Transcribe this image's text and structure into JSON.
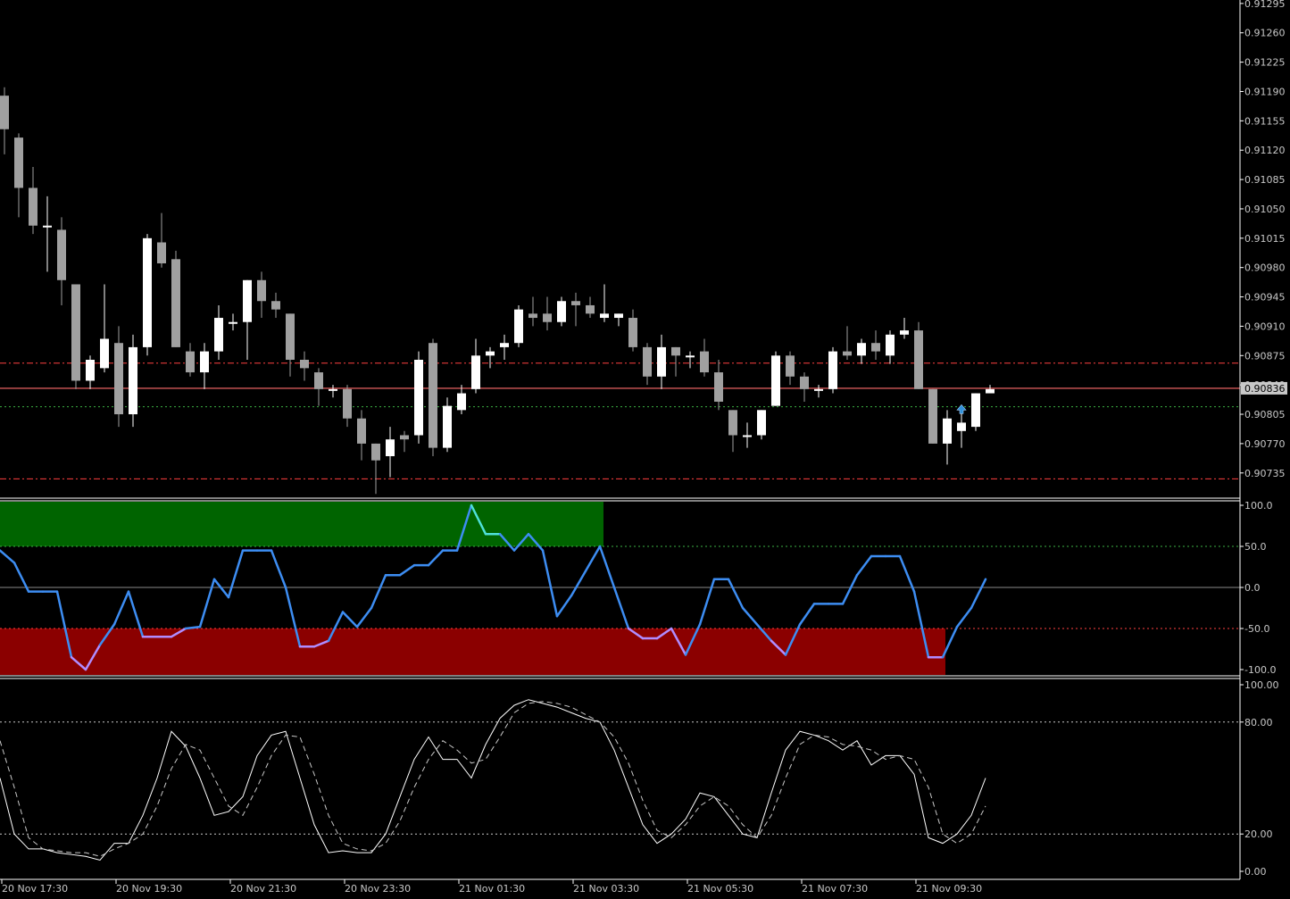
{
  "chart_data": [
    {
      "type": "candlestick",
      "price_axis_ticks": [
        "0.91295",
        "0.91260",
        "0.91225",
        "0.91190",
        "0.91155",
        "0.91120",
        "0.91085",
        "0.91050",
        "0.91015",
        "0.90980",
        "0.90945",
        "0.90910",
        "0.90875",
        "0.90840",
        "0.90805",
        "0.90770",
        "0.90735"
      ],
      "ylim": [
        0.907,
        0.91295
      ],
      "current_price": 0.90836,
      "current_price_label": "0.90836",
      "current_price_color": "#ff6b6b",
      "levels": [
        {
          "price": 0.90866,
          "style": "dashdot",
          "color": "#ff4040"
        },
        {
          "price": 0.90814,
          "style": "dotted",
          "color": "#3cb043"
        },
        {
          "price": 0.90728,
          "style": "dashdot",
          "color": "#ff4040"
        }
      ],
      "bull_color": "#ffffff",
      "bear_color": "#a0a0a0",
      "candles": [
        {
          "o": 0.91185,
          "h": 0.91195,
          "l": 0.91115,
          "c": 0.91145
        },
        {
          "o": 0.91135,
          "h": 0.9114,
          "l": 0.9104,
          "c": 0.91075
        },
        {
          "o": 0.91075,
          "h": 0.911,
          "l": 0.9102,
          "c": 0.9103
        },
        {
          "o": 0.9103,
          "h": 0.91065,
          "l": 0.90975,
          "c": 0.9103
        },
        {
          "o": 0.91025,
          "h": 0.9104,
          "l": 0.90935,
          "c": 0.90965
        },
        {
          "o": 0.9096,
          "h": 0.9096,
          "l": 0.90835,
          "c": 0.90845
        },
        {
          "o": 0.90845,
          "h": 0.90875,
          "l": 0.90835,
          "c": 0.9087
        },
        {
          "o": 0.9086,
          "h": 0.9096,
          "l": 0.90855,
          "c": 0.90895
        },
        {
          "o": 0.9089,
          "h": 0.9091,
          "l": 0.9079,
          "c": 0.90805
        },
        {
          "o": 0.90805,
          "h": 0.909,
          "l": 0.9079,
          "c": 0.90885
        },
        {
          "o": 0.90885,
          "h": 0.9102,
          "l": 0.90875,
          "c": 0.91015
        },
        {
          "o": 0.9101,
          "h": 0.91045,
          "l": 0.9098,
          "c": 0.90985
        },
        {
          "o": 0.9099,
          "h": 0.91,
          "l": 0.90885,
          "c": 0.90885
        },
        {
          "o": 0.9088,
          "h": 0.9089,
          "l": 0.9085,
          "c": 0.90855
        },
        {
          "o": 0.90855,
          "h": 0.9089,
          "l": 0.90835,
          "c": 0.9088
        },
        {
          "o": 0.9088,
          "h": 0.90935,
          "l": 0.9087,
          "c": 0.9092
        },
        {
          "o": 0.90915,
          "h": 0.90925,
          "l": 0.90905,
          "c": 0.90915
        },
        {
          "o": 0.90915,
          "h": 0.90965,
          "l": 0.9087,
          "c": 0.90965
        },
        {
          "o": 0.90965,
          "h": 0.90975,
          "l": 0.9092,
          "c": 0.9094
        },
        {
          "o": 0.9094,
          "h": 0.9095,
          "l": 0.9092,
          "c": 0.9093
        },
        {
          "o": 0.90925,
          "h": 0.90925,
          "l": 0.9085,
          "c": 0.9087
        },
        {
          "o": 0.9087,
          "h": 0.9088,
          "l": 0.90845,
          "c": 0.9086
        },
        {
          "o": 0.90855,
          "h": 0.9086,
          "l": 0.90815,
          "c": 0.90835
        },
        {
          "o": 0.90835,
          "h": 0.9084,
          "l": 0.90825,
          "c": 0.90835
        },
        {
          "o": 0.90835,
          "h": 0.9084,
          "l": 0.9079,
          "c": 0.908
        },
        {
          "o": 0.908,
          "h": 0.9081,
          "l": 0.9075,
          "c": 0.9077
        },
        {
          "o": 0.9077,
          "h": 0.9077,
          "l": 0.9071,
          "c": 0.9075
        },
        {
          "o": 0.90755,
          "h": 0.9079,
          "l": 0.9073,
          "c": 0.90775
        },
        {
          "o": 0.9078,
          "h": 0.90785,
          "l": 0.9076,
          "c": 0.90775
        },
        {
          "o": 0.9078,
          "h": 0.9088,
          "l": 0.9077,
          "c": 0.9087
        },
        {
          "o": 0.9089,
          "h": 0.90895,
          "l": 0.90755,
          "c": 0.90765
        },
        {
          "o": 0.90765,
          "h": 0.90825,
          "l": 0.9076,
          "c": 0.90815
        },
        {
          "o": 0.9081,
          "h": 0.9084,
          "l": 0.90805,
          "c": 0.9083
        },
        {
          "o": 0.90835,
          "h": 0.90895,
          "l": 0.9083,
          "c": 0.90875
        },
        {
          "o": 0.90875,
          "h": 0.90885,
          "l": 0.9086,
          "c": 0.9088
        },
        {
          "o": 0.90885,
          "h": 0.909,
          "l": 0.9087,
          "c": 0.9089
        },
        {
          "o": 0.9089,
          "h": 0.90935,
          "l": 0.90885,
          "c": 0.9093
        },
        {
          "o": 0.90925,
          "h": 0.90945,
          "l": 0.9091,
          "c": 0.9092
        },
        {
          "o": 0.90925,
          "h": 0.90945,
          "l": 0.90905,
          "c": 0.90915
        },
        {
          "o": 0.90915,
          "h": 0.90945,
          "l": 0.9091,
          "c": 0.9094
        },
        {
          "o": 0.9094,
          "h": 0.9095,
          "l": 0.9091,
          "c": 0.90935
        },
        {
          "o": 0.90935,
          "h": 0.90945,
          "l": 0.9092,
          "c": 0.90925
        },
        {
          "o": 0.9092,
          "h": 0.9096,
          "l": 0.90915,
          "c": 0.90925
        },
        {
          "o": 0.9092,
          "h": 0.90925,
          "l": 0.9091,
          "c": 0.90925
        },
        {
          "o": 0.9092,
          "h": 0.9093,
          "l": 0.9088,
          "c": 0.90885
        },
        {
          "o": 0.90885,
          "h": 0.9089,
          "l": 0.9084,
          "c": 0.9085
        },
        {
          "o": 0.9085,
          "h": 0.909,
          "l": 0.90835,
          "c": 0.90885
        },
        {
          "o": 0.90885,
          "h": 0.90885,
          "l": 0.9085,
          "c": 0.90875
        },
        {
          "o": 0.90875,
          "h": 0.9088,
          "l": 0.9086,
          "c": 0.90875
        },
        {
          "o": 0.9088,
          "h": 0.90895,
          "l": 0.9085,
          "c": 0.90855
        },
        {
          "o": 0.90855,
          "h": 0.9087,
          "l": 0.9081,
          "c": 0.9082
        },
        {
          "o": 0.9081,
          "h": 0.9081,
          "l": 0.9076,
          "c": 0.9078
        },
        {
          "o": 0.9078,
          "h": 0.90795,
          "l": 0.90765,
          "c": 0.9078
        },
        {
          "o": 0.9078,
          "h": 0.9081,
          "l": 0.90775,
          "c": 0.9081
        },
        {
          "o": 0.90815,
          "h": 0.9088,
          "l": 0.90815,
          "c": 0.90875
        },
        {
          "o": 0.90875,
          "h": 0.9088,
          "l": 0.9084,
          "c": 0.9085
        },
        {
          "o": 0.9085,
          "h": 0.90855,
          "l": 0.9082,
          "c": 0.90835
        },
        {
          "o": 0.90835,
          "h": 0.9084,
          "l": 0.90825,
          "c": 0.90835
        },
        {
          "o": 0.90835,
          "h": 0.90885,
          "l": 0.9083,
          "c": 0.9088
        },
        {
          "o": 0.9088,
          "h": 0.9091,
          "l": 0.9087,
          "c": 0.90875
        },
        {
          "o": 0.90875,
          "h": 0.90895,
          "l": 0.90865,
          "c": 0.9089
        },
        {
          "o": 0.9089,
          "h": 0.90905,
          "l": 0.9087,
          "c": 0.9088
        },
        {
          "o": 0.90875,
          "h": 0.90905,
          "l": 0.90865,
          "c": 0.909
        },
        {
          "o": 0.909,
          "h": 0.9092,
          "l": 0.90895,
          "c": 0.90905
        },
        {
          "o": 0.90905,
          "h": 0.90915,
          "l": 0.90835,
          "c": 0.90835
        },
        {
          "o": 0.90835,
          "h": 0.90835,
          "l": 0.9077,
          "c": 0.9077
        },
        {
          "o": 0.9077,
          "h": 0.9081,
          "l": 0.90745,
          "c": 0.908
        },
        {
          "o": 0.90785,
          "h": 0.90815,
          "l": 0.90765,
          "c": 0.90795
        },
        {
          "o": 0.9079,
          "h": 0.9083,
          "l": 0.90785,
          "c": 0.9083
        },
        {
          "o": 0.9083,
          "h": 0.9084,
          "l": 0.9083,
          "c": 0.90835
        }
      ],
      "marker_label": "up-arrow"
    },
    {
      "type": "line",
      "indicator": "oscillator",
      "ylim": [
        -100,
        100
      ],
      "ticks": [
        "100.0",
        "50.0",
        "0.0",
        "-50.0",
        "-100.0"
      ],
      "overbought": 50,
      "oversold": -50,
      "overbought_zone_color": "#006400",
      "oversold_zone_color": "#8b0000",
      "line_color": "#3d8df2",
      "extreme_high_color": "#4fe0d8",
      "extreme_low_color": "#b08cff",
      "values": [
        45,
        30,
        -5,
        -5,
        -5,
        -85,
        -100,
        -70,
        -45,
        -5,
        -60,
        -60,
        -60,
        -50,
        -48,
        10,
        -12,
        45,
        45,
        45,
        0,
        -72,
        -72,
        -65,
        -30,
        -48,
        -25,
        15,
        15,
        27,
        27,
        45,
        45,
        100,
        65,
        65,
        45,
        65,
        45,
        -35,
        -10,
        20,
        50,
        0,
        -50,
        -62,
        -62,
        -50,
        -82,
        -45,
        10,
        10,
        -25,
        -45,
        -65,
        -82,
        -45,
        -20,
        -20,
        -20,
        15,
        38,
        38,
        38,
        -5,
        -85,
        -85,
        -48,
        -25,
        10
      ]
    },
    {
      "type": "line",
      "indicator": "stochastic",
      "ylim": [
        0,
        100
      ],
      "ticks": [
        "100.00",
        "80.00",
        "20.00",
        "0.00"
      ],
      "levels": [
        80,
        20
      ],
      "series": [
        {
          "style": "solid",
          "color": "#ffffff",
          "values": [
            50,
            20,
            12,
            12,
            10,
            9,
            8,
            6,
            15,
            15,
            30,
            50,
            75,
            67,
            50,
            30,
            32,
            40,
            62,
            73,
            75,
            50,
            25,
            10,
            11,
            10,
            10,
            20,
            40,
            60,
            72,
            60,
            60,
            50,
            68,
            82,
            89,
            92,
            90,
            88,
            85,
            82,
            80,
            65,
            45,
            25,
            15,
            20,
            28,
            42,
            40,
            30,
            20,
            18,
            42,
            65,
            75,
            73,
            70,
            65,
            70,
            57,
            62,
            62,
            52,
            18,
            15,
            20,
            30,
            50
          ]
        },
        {
          "style": "dashed",
          "color": "#c8c8c8",
          "values": [
            70,
            45,
            18,
            12,
            11,
            10,
            10,
            8,
            12,
            15,
            20,
            35,
            55,
            68,
            65,
            50,
            35,
            30,
            45,
            62,
            73,
            72,
            52,
            30,
            15,
            12,
            11,
            15,
            27,
            45,
            60,
            70,
            65,
            58,
            60,
            72,
            85,
            90,
            91,
            90,
            88,
            84,
            80,
            72,
            58,
            38,
            22,
            18,
            25,
            35,
            40,
            35,
            25,
            18,
            30,
            50,
            68,
            73,
            72,
            68,
            67,
            65,
            60,
            62,
            60,
            45,
            20,
            15,
            20,
            35
          ]
        }
      ]
    }
  ],
  "time_labels": [
    "20 Nov 17:30",
    "20 Nov 19:30",
    "20 Nov 21:30",
    "20 Nov 23:30",
    "21 Nov 01:30",
    "21 Nov 03:30",
    "21 Nov 05:30",
    "21 Nov 07:30",
    "21 Nov 09:30"
  ],
  "colors": {
    "background": "#000000",
    "axis": "#ffffff",
    "grid_text": "#c8c8c8"
  }
}
